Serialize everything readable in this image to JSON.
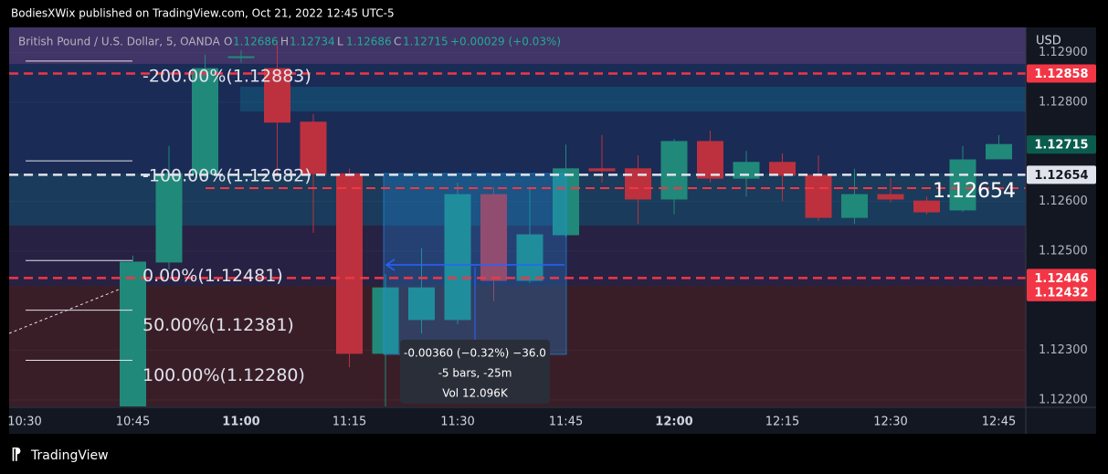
{
  "header": "BodiesXWix published on TradingView.com, Oct 21, 2022 12:45 UTC-5",
  "footer": "TradingView",
  "chart_data": {
    "type": "candlestick",
    "legend": {
      "symbol": "British Pound / U.S. Dollar, 5, OANDA",
      "ohlc": [
        {
          "label": "O",
          "value": 1.12686
        },
        {
          "label": "H",
          "value": 1.12734
        },
        {
          "label": "L",
          "value": 1.12686
        },
        {
          "label": "C",
          "value": 1.12715
        }
      ],
      "change": "+0.00029 (+0.03%)"
    },
    "y_axis_label": "USD",
    "categories": [
      "10:30",
      null,
      null,
      "10:45",
      null,
      null,
      "11:00",
      null,
      null,
      "11:15",
      null,
      null,
      "11:30",
      null,
      null,
      "11:45",
      null,
      null,
      "12:00",
      null,
      null,
      "12:15",
      null,
      null,
      "12:30",
      null,
      null,
      "12:45"
    ],
    "open": [
      null,
      null,
      null,
      1.12187,
      1.12478,
      1.12656,
      1.1289,
      1.12868,
      1.1276,
      1.12656,
      1.12294,
      1.12362,
      1.12362,
      1.12614,
      1.12441,
      1.12533,
      1.12666,
      1.12666,
      1.12605,
      1.12721,
      1.12647,
      1.12679,
      1.12653,
      1.12568,
      1.12614,
      1.12601,
      1.12583,
      1.12686
    ],
    "high": [
      null,
      null,
      null,
      1.12491,
      1.12712,
      1.12896,
      1.12905,
      1.12923,
      1.12776,
      1.12666,
      1.12454,
      1.12506,
      1.12638,
      1.12629,
      1.12629,
      1.12715,
      1.12734,
      1.12693,
      1.12726,
      1.12743,
      1.12702,
      1.12697,
      1.12693,
      1.12666,
      1.12647,
      1.1261,
      1.12712,
      1.12734
    ],
    "low": [
      null,
      null,
      null,
      1.12178,
      1.12463,
      1.12647,
      1.1288,
      1.12656,
      1.12537,
      1.12266,
      1.12187,
      1.12334,
      1.12353,
      1.12399,
      1.12436,
      1.12528,
      1.12638,
      1.12555,
      1.12574,
      1.12638,
      1.1261,
      1.12601,
      1.12561,
      1.12555,
      1.12598,
      1.12574,
      1.12579,
      1.12686
    ],
    "close": [
      null,
      null,
      null,
      1.12478,
      1.12656,
      1.12868,
      1.12892,
      1.1276,
      1.12656,
      1.12294,
      1.12426,
      1.12426,
      1.12614,
      1.12441,
      1.12533,
      1.12666,
      1.12662,
      1.12605,
      1.12721,
      1.12647,
      1.12679,
      1.12653,
      1.12568,
      1.12614,
      1.12605,
      1.12579,
      1.12684,
      1.12715
    ],
    "up_color": "#22ab94",
    "down_color": "#f23645",
    "ylim": [
      1.12187,
      1.12951
    ],
    "yticks": [
      {
        "value": 1.122,
        "label": "1.12200"
      },
      {
        "value": 1.123,
        "label": "1.12300"
      },
      {
        "value": 1.125,
        "label": "1.12500"
      },
      {
        "value": 1.126,
        "label": "1.12600"
      },
      {
        "value": 1.128,
        "label": "1.12800"
      },
      {
        "value": 1.129,
        "label": "1.12900"
      }
    ],
    "price_lines": [
      {
        "value": 1.12858,
        "color": "#f23645"
      },
      {
        "value": 1.12715,
        "color": "#0a5c4e"
      },
      {
        "value": 1.12654,
        "color": "#e0e3eb"
      },
      {
        "value": 1.12446,
        "color": "#f23645"
      },
      {
        "value": 1.12432,
        "color": "#f23645"
      }
    ],
    "fib_levels": [
      {
        "label": "-200.00%(1.12883)",
        "value": 1.12883
      },
      {
        "label": "-100.00%(1.12682)",
        "value": 1.12682
      },
      {
        "label": "0.00%(1.12481)",
        "value": 1.12481
      },
      {
        "label": "50.00%(1.12381)",
        "value": 1.12381
      },
      {
        "label": "100.00%(1.12280)",
        "value": 1.1228
      }
    ],
    "measure": [
      "-0.00360 (−0.32%) −36.0",
      "-5 bars, -25m",
      "Vol 12.096K"
    ]
  }
}
